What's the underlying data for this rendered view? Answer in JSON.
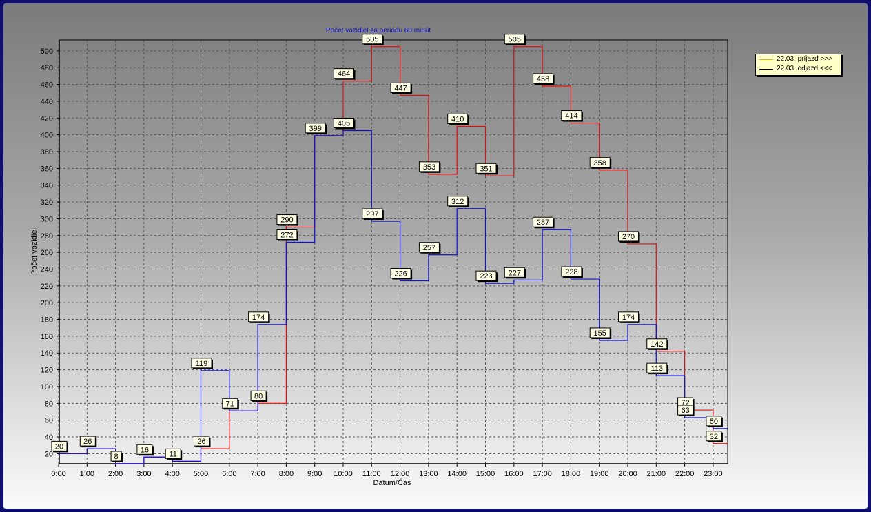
{
  "chart_data": {
    "type": "line",
    "title": "Počet vozidiel za periódu 60 minút",
    "xlabel": "Dátum/Čas",
    "ylabel": "Počet vozidiel",
    "categories": [
      "0:00",
      "1:00",
      "2:00",
      "3:00",
      "4:00",
      "5:00",
      "6:00",
      "7:00",
      "8:00",
      "9:00",
      "10:00",
      "11:00",
      "12:00",
      "13:00",
      "14:00",
      "15:00",
      "16:00",
      "17:00",
      "18:00",
      "19:00",
      "20:00",
      "21:00",
      "22:00",
      "23:00"
    ],
    "yticks": [
      20,
      40,
      60,
      80,
      100,
      120,
      140,
      160,
      180,
      200,
      220,
      240,
      260,
      280,
      300,
      320,
      340,
      360,
      380,
      400,
      420,
      440,
      460,
      480,
      500
    ],
    "ylim": [
      8,
      513
    ],
    "grid": true,
    "legend_position": "top-right",
    "series": [
      {
        "name": "22.03.  príjazd >>>",
        "color": "#e01010",
        "legend_color": "#e0c000",
        "values": [
          20,
          26,
          8,
          16,
          11,
          26,
          71,
          80,
          290,
          399,
          464,
          505,
          447,
          353,
          410,
          351,
          505,
          458,
          414,
          358,
          270,
          142,
          72,
          32
        ]
      },
      {
        "name": "22.03.  odjazd <<<",
        "color": "#1010d0",
        "legend_color": "#000000",
        "values": [
          20,
          26,
          8,
          16,
          11,
          119,
          71,
          174,
          272,
          399,
          405,
          297,
          226,
          257,
          312,
          223,
          227,
          287,
          228,
          155,
          174,
          113,
          63,
          50
        ]
      }
    ],
    "data_labels": [
      {
        "x": "0:00",
        "text": "20"
      },
      {
        "x": "1:00",
        "text": "26"
      },
      {
        "x": "2:00",
        "text": "8"
      },
      {
        "x": "3:00",
        "text": "16"
      },
      {
        "x": "4:00",
        "text": "11"
      },
      {
        "x": "5:00",
        "text": "119"
      },
      {
        "x": "5:00",
        "text": "26"
      },
      {
        "x": "6:00",
        "text": "71"
      },
      {
        "x": "7:00",
        "text": "174"
      },
      {
        "x": "7:00",
        "text": "80"
      },
      {
        "x": "8:00",
        "text": "290"
      },
      {
        "x": "8:00",
        "text": "272"
      },
      {
        "x": "9:00",
        "text": "399"
      },
      {
        "x": "10:00",
        "text": "464"
      },
      {
        "x": "10:00",
        "text": "405"
      },
      {
        "x": "11:00",
        "text": "505"
      },
      {
        "x": "11:00",
        "text": "297"
      },
      {
        "x": "12:00",
        "text": "447"
      },
      {
        "x": "12:00",
        "text": "226"
      },
      {
        "x": "13:00",
        "text": "353"
      },
      {
        "x": "13:00",
        "text": "257"
      },
      {
        "x": "14:00",
        "text": "410"
      },
      {
        "x": "14:00",
        "text": "312"
      },
      {
        "x": "15:00",
        "text": "351"
      },
      {
        "x": "15:00",
        "text": "223"
      },
      {
        "x": "16:00",
        "text": "505"
      },
      {
        "x": "16:00",
        "text": "227"
      },
      {
        "x": "17:00",
        "text": "458"
      },
      {
        "x": "17:00",
        "text": "287"
      },
      {
        "x": "18:00",
        "text": "414"
      },
      {
        "x": "18:00",
        "text": "228"
      },
      {
        "x": "19:00",
        "text": "358"
      },
      {
        "x": "19:00",
        "text": "155"
      },
      {
        "x": "20:00",
        "text": "270"
      },
      {
        "x": "20:00",
        "text": "174"
      },
      {
        "x": "21:00",
        "text": "142"
      },
      {
        "x": "21:00",
        "text": "113"
      },
      {
        "x": "22:00",
        "text": "72"
      },
      {
        "x": "22:00",
        "text": "63"
      },
      {
        "x": "23:00",
        "text": "50"
      },
      {
        "x": "23:00",
        "text": "32"
      }
    ]
  }
}
